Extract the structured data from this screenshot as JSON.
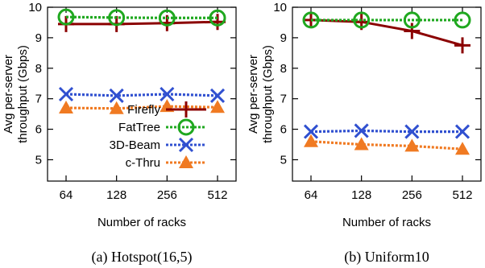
{
  "chart_data": [
    {
      "type": "line",
      "caption": "(a) Hotspot(16,5)",
      "xlabel": "Number of racks",
      "ylabel": "Avg per-server throughput (Gbps)",
      "ylabel_lines": [
        "Avg per-server",
        "throughput (Gbps)"
      ],
      "categories": [
        "64",
        "128",
        "256",
        "512"
      ],
      "ylim": [
        4.3,
        10
      ],
      "yticks": [
        5,
        6,
        7,
        8,
        9,
        10
      ],
      "legend": "bottom-right",
      "series": [
        {
          "name": "Firefly",
          "values": [
            9.45,
            9.45,
            9.48,
            9.52
          ],
          "color": "#8b0000",
          "marker": "plus",
          "dash": "solid"
        },
        {
          "name": "FatTree",
          "values": [
            9.68,
            9.66,
            9.65,
            9.65
          ],
          "color": "#1fa81f",
          "marker": "circle",
          "dash": "dotted"
        },
        {
          "name": "3D-Beam",
          "values": [
            7.15,
            7.1,
            7.15,
            7.1
          ],
          "color": "#3050d0",
          "marker": "x",
          "dash": "dotted"
        },
        {
          "name": "c-Thru",
          "values": [
            6.7,
            6.68,
            6.75,
            6.72
          ],
          "color": "#f07a22",
          "marker": "triangle",
          "dash": "dotted"
        }
      ]
    },
    {
      "type": "line",
      "caption": "(b) Uniform10",
      "xlabel": "Number of racks",
      "ylabel": "Avg per-server throughput (Gbps)",
      "ylabel_lines": [
        "Avg per-server",
        "throughput (Gbps)"
      ],
      "categories": [
        "64",
        "128",
        "256",
        "512"
      ],
      "ylim": [
        4.3,
        10
      ],
      "yticks": [
        5,
        6,
        7,
        8,
        9,
        10
      ],
      "series": [
        {
          "name": "Firefly",
          "values": [
            9.58,
            9.52,
            9.22,
            8.75
          ],
          "color": "#8b0000",
          "marker": "plus",
          "dash": "solid"
        },
        {
          "name": "FatTree",
          "values": [
            9.58,
            9.58,
            9.58,
            9.58
          ],
          "color": "#1fa81f",
          "marker": "circle",
          "dash": "dotted"
        },
        {
          "name": "3D-Beam",
          "values": [
            5.92,
            5.95,
            5.92,
            5.92
          ],
          "color": "#3050d0",
          "marker": "x",
          "dash": "dotted"
        },
        {
          "name": "c-Thru",
          "values": [
            5.6,
            5.5,
            5.45,
            5.35
          ],
          "color": "#f07a22",
          "marker": "triangle",
          "dash": "dotted"
        }
      ]
    }
  ]
}
